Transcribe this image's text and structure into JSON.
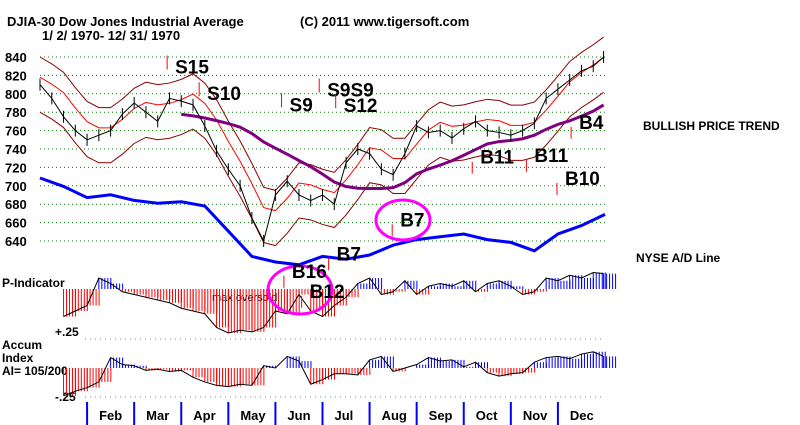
{
  "header": {
    "title": "DJIA-30  Dow Jones Industrial Average",
    "copyright": "(C) 2011 www.tigersoft.com",
    "date_range": "1/ 2/ 1970- 12/ 31/ 1970"
  },
  "labels": {
    "trend": "BULLISH PRICE TREND",
    "ad_line": "NYSE A/D Line",
    "p_indicator": "P-Indicator",
    "accum_1": "Accum",
    "accum_2": "Index",
    "accum_3": "AI= 105/200",
    "accum_top": "+.25",
    "accum_bottom": "-.25",
    "max_oversold": "max oversold"
  },
  "colors": {
    "price": "#000000",
    "band": "#8b0000",
    "band_inner": "#ff0000",
    "ma": "#800080",
    "ad": "#0000ff",
    "pos": "#0000ff",
    "neg": "#ff0000",
    "circle": "#ff00ff"
  },
  "chart_data": {
    "type": "line",
    "title": "DJIA-30 Dow Jones Industrial Average 1/2/1970 - 12/31/1970",
    "ylim": [
      640,
      840
    ],
    "yticks": [
      "840",
      "820",
      "800",
      "780",
      "760",
      "740",
      "720",
      "700",
      "680",
      "660",
      "640"
    ],
    "months": [
      "Feb",
      "Mar",
      "Apr",
      "May",
      "Jun",
      "Jul",
      "Aug",
      "Sep",
      "Oct",
      "Nov",
      "Dec"
    ],
    "price": {
      "t": [
        1.0,
        1.25,
        1.5,
        1.75,
        2.0,
        2.25,
        2.5,
        2.75,
        3.0,
        3.25,
        3.5,
        3.75,
        4.0,
        4.25,
        4.5,
        4.75,
        5.0,
        5.25,
        5.5,
        5.75,
        6.0,
        6.25,
        6.5,
        6.75,
        7.0,
        7.25,
        7.5,
        7.75,
        8.0,
        8.25,
        8.5,
        8.75,
        9.0,
        9.25,
        9.5,
        9.75,
        10.0,
        10.25,
        10.5,
        10.75,
        11.0,
        11.25,
        11.5,
        11.75,
        12.0,
        12.25,
        12.5,
        12.75,
        12.97
      ],
      "close": [
        810,
        795,
        775,
        760,
        750,
        755,
        760,
        778,
        790,
        780,
        770,
        795,
        792,
        788,
        765,
        738,
        718,
        700,
        665,
        640,
        690,
        705,
        690,
        684,
        690,
        680,
        725,
        740,
        735,
        718,
        712,
        735,
        765,
        758,
        760,
        752,
        762,
        770,
        760,
        758,
        755,
        760,
        768,
        795,
        805,
        815,
        825,
        830,
        840
      ]
    },
    "ad_line": {
      "t": [
        1.0,
        1.5,
        2.0,
        2.5,
        3.0,
        3.5,
        4.0,
        4.5,
        5.0,
        5.5,
        6.0,
        6.5,
        7.0,
        7.5,
        8.0,
        8.5,
        9.0,
        9.5,
        10.0,
        10.5,
        11.0,
        11.5,
        12.0,
        12.5,
        13.0
      ],
      "v": [
        100,
        94,
        86,
        88,
        84,
        82,
        83,
        80,
        62,
        44,
        40,
        38,
        44,
        42,
        45,
        52,
        56,
        58,
        60,
        56,
        54,
        48,
        60,
        66,
        74
      ]
    },
    "p_indicator": {
      "t": [
        1.5,
        1.75,
        2.0,
        2.25,
        2.5,
        2.75,
        3.0,
        3.25,
        3.5,
        3.75,
        4.0,
        4.25,
        4.5,
        4.75,
        5.0,
        5.25,
        5.5,
        5.75,
        6.0,
        6.25,
        6.5,
        6.75,
        7.0,
        7.25,
        7.5,
        7.75,
        8.0,
        8.25,
        8.5,
        8.75,
        9.0,
        9.25,
        9.5,
        9.75,
        10.0,
        10.25,
        10.5,
        10.75,
        11.0,
        11.25,
        11.5,
        11.75,
        12.0,
        12.25,
        12.5,
        12.75,
        12.97
      ],
      "v": [
        -50,
        -40,
        -30,
        20,
        10,
        -5,
        -10,
        -15,
        -20,
        -25,
        -35,
        -40,
        -45,
        -70,
        -80,
        -75,
        -78,
        -70,
        -40,
        -45,
        -10,
        -40,
        -50,
        -30,
        -15,
        10,
        20,
        -10,
        -5,
        15,
        -10,
        5,
        10,
        5,
        15,
        -5,
        10,
        15,
        5,
        -10,
        -5,
        20,
        15,
        25,
        20,
        30,
        28
      ]
    },
    "accum_index": {
      "t": [
        1.5,
        1.75,
        2.0,
        2.25,
        2.5,
        2.75,
        3.0,
        3.25,
        3.5,
        3.75,
        4.0,
        4.25,
        4.5,
        4.75,
        5.0,
        5.25,
        5.5,
        5.75,
        6.0,
        6.25,
        6.5,
        6.75,
        7.0,
        7.25,
        7.5,
        7.75,
        8.0,
        8.25,
        8.5,
        8.75,
        9.0,
        9.25,
        9.5,
        9.75,
        10.0,
        10.25,
        10.5,
        10.75,
        11.0,
        11.25,
        11.5,
        11.75,
        12.0,
        12.25,
        12.5,
        12.75,
        12.97
      ],
      "v": [
        -0.24,
        -0.2,
        -0.17,
        -0.12,
        0.09,
        0.03,
        0.02,
        -0.02,
        -0.01,
        -0.03,
        -0.02,
        -0.08,
        -0.12,
        -0.15,
        -0.16,
        -0.14,
        -0.15,
        0.02,
        0.0,
        0.1,
        0.06,
        -0.14,
        -0.1,
        -0.05,
        -0.05,
        -0.06,
        0.07,
        0.1,
        -0.03,
        0.0,
        0.03,
        0.09,
        0.06,
        0.07,
        0.01,
        0.05,
        -0.04,
        -0.07,
        -0.05,
        -0.04,
        0.05,
        0.09,
        0.1,
        0.08,
        0.12,
        0.14,
        0.1
      ]
    },
    "signals": [
      {
        "label": "S15",
        "t": 3.87,
        "price": 822
      },
      {
        "label": "S10",
        "t": 4.55,
        "price": 793
      },
      {
        "label": "S9",
        "t": 6.3,
        "price": 781
      },
      {
        "label": "S9S9",
        "t": 7.1,
        "price": 797
      },
      {
        "label": "S12",
        "t": 7.45,
        "price": 780
      },
      {
        "label": "B7",
        "t": 8.65,
        "price": 656
      },
      {
        "label": "B7",
        "t": 7.3,
        "price": 619
      },
      {
        "label": "B16",
        "t": 6.35,
        "price": 600
      },
      {
        "label": "B12",
        "t": 6.6,
        "price": 588
      },
      {
        "label": "B11",
        "t": 10.35,
        "price": 724
      },
      {
        "label": "B11",
        "t": 11.5,
        "price": 726
      },
      {
        "label": "B10",
        "t": 12.15,
        "price": 701
      },
      {
        "label": "B4",
        "t": 12.45,
        "price": 762
      }
    ]
  }
}
